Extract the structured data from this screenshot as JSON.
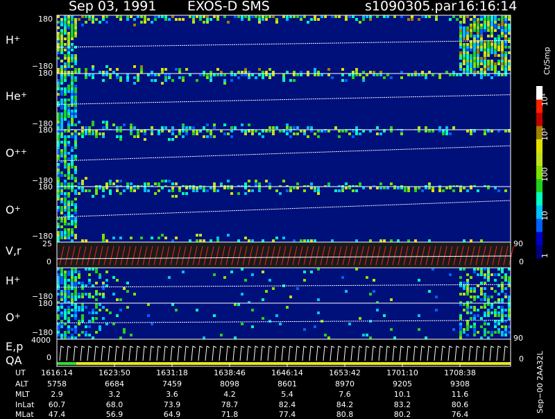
{
  "header": {
    "date": "Sep 03, 1991",
    "instrument": "EXOS-D SMS",
    "file": "s1090305.par",
    "time": "16:16:14"
  },
  "colorbar": {
    "unit": "Ct/Smp",
    "ticks": [
      "1",
      "10",
      "100",
      "10³",
      "10⁴"
    ],
    "colors": [
      "#000080",
      "#0000c8",
      "#0060ff",
      "#00c0ff",
      "#00ffc0",
      "#20d020",
      "#80e000",
      "#c0e020",
      "#e0e000",
      "#a08000",
      "#c00000",
      "#ff2000",
      "#ffffff"
    ]
  },
  "panels": [
    {
      "id": "h-plus",
      "label": "H",
      "sup": "+",
      "y_top": "180",
      "y_bottom": "−180"
    },
    {
      "id": "he-plus",
      "label": "He",
      "sup": "+",
      "y_top": "180",
      "y_bottom": "−180"
    },
    {
      "id": "o-plus-plus",
      "label": "O",
      "sup": "++",
      "y_top": "180",
      "y_bottom": "−180"
    },
    {
      "id": "o-plus",
      "label": "O",
      "sup": "+",
      "y_top": "180",
      "y_bottom": "−180"
    },
    {
      "id": "v-r",
      "label": "V,r",
      "sup": "",
      "y_top": "25",
      "y_bottom": "0",
      "right_top": "90",
      "right_bottom": "0"
    },
    {
      "id": "h-plus-2",
      "label": "H",
      "sup": "+",
      "y_top": "180",
      "y_bottom": "−180"
    },
    {
      "id": "o-plus-2",
      "label": "O",
      "sup": "+",
      "y_top": "180",
      "y_bottom": "−180"
    },
    {
      "id": "e-p-qa",
      "label": "E,p",
      "label2": "QA",
      "y_top": "4000",
      "y_bottom": "0",
      "right_top": "90",
      "right_bottom": "0"
    }
  ],
  "orbit": {
    "rows": [
      {
        "name": "UT",
        "values": [
          "1616:14",
          "1623:50",
          "1631:18",
          "1638:46",
          "1646:14",
          "1653:42",
          "1701:10",
          "1708:38"
        ]
      },
      {
        "name": "ALT",
        "values": [
          "5758",
          "6684",
          "7459",
          "8098",
          "8601",
          "8970",
          "9205",
          "9308"
        ]
      },
      {
        "name": "MLT",
        "values": [
          "2.9",
          "3.2",
          "3.6",
          "4.2",
          "5.4",
          "7.6",
          "10.1",
          "11.6"
        ]
      },
      {
        "name": "InLat",
        "values": [
          "60.7",
          "68.0",
          "73.9",
          "78.7",
          "82.4",
          "84.2",
          "83.2",
          "80.6"
        ]
      },
      {
        "name": "MLat",
        "values": [
          "47.4",
          "56.9",
          "64.9",
          "71.8",
          "77.4",
          "80.8",
          "80.2",
          "76.4"
        ]
      }
    ],
    "side_note": "Sep−00 2AA32L"
  },
  "chart_data": {
    "type": "heatmap",
    "title": "Sep 03, 1991   EXOS-D SMS",
    "xlabel": "UT",
    "x_ticks": [
      "1616:14",
      "1623:50",
      "1631:18",
      "1638:46",
      "1646:14",
      "1653:42",
      "1701:10",
      "1708:38"
    ],
    "color_scale": {
      "unit": "Ct/Smp",
      "scale": "log",
      "range": [
        1,
        10000
      ]
    },
    "series": [
      {
        "name": "H+",
        "ylim": [
          -180,
          180
        ]
      },
      {
        "name": "He+",
        "ylim": [
          -180,
          180
        ]
      },
      {
        "name": "O++",
        "ylim": [
          -180,
          180
        ]
      },
      {
        "name": "O+",
        "ylim": [
          -180,
          180
        ]
      },
      {
        "name": "V,r",
        "ylim": [
          0,
          25
        ],
        "right_ylim": [
          0,
          90
        ]
      },
      {
        "name": "H+",
        "ylim": [
          -180,
          180
        ]
      },
      {
        "name": "O+",
        "ylim": [
          -180,
          180
        ]
      },
      {
        "name": "E,p QA",
        "ylim": [
          0,
          4000
        ],
        "right_ylim": [
          0,
          90
        ]
      }
    ]
  }
}
